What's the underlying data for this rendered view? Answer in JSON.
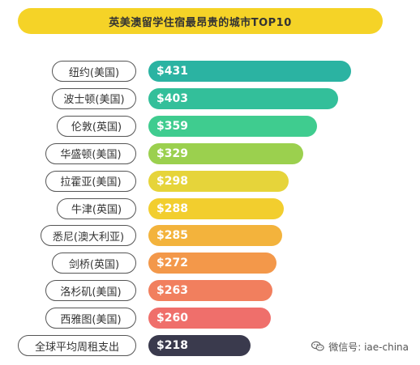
{
  "chart_data": {
    "type": "bar",
    "title": "英美澳留学住宿最昂贵的城市TOP10",
    "categories": [
      "纽约(美国)",
      "波士顿(美国)",
      "伦敦(英国)",
      "华盛顿(美国)",
      "拉霍亚(美国)",
      "牛津(英国)",
      "悉尼(澳大利亚)",
      "剑桥(英国)",
      "洛杉矶(美国)",
      "西雅图(美国)",
      "全球平均周租支出"
    ],
    "values": [
      431,
      403,
      359,
      329,
      298,
      288,
      285,
      272,
      263,
      260,
      218
    ],
    "value_labels": [
      "$431",
      "$403",
      "$359",
      "$329",
      "$298",
      "$288",
      "$285",
      "$272",
      "$263",
      "$260",
      "$218"
    ],
    "colors": [
      "#2BB3A2",
      "#33BF9A",
      "#3FCC8F",
      "#9BD04E",
      "#E6D43A",
      "#F2CE2E",
      "#F3B33C",
      "#F3984A",
      "#F17F5E",
      "#EF6F6B",
      "#3A3A4D"
    ],
    "orientation": "horizontal",
    "xlim": [
      0,
      431
    ]
  },
  "watermark": {
    "icon": "wechat-icon",
    "text": "微信号: iae-china"
  }
}
